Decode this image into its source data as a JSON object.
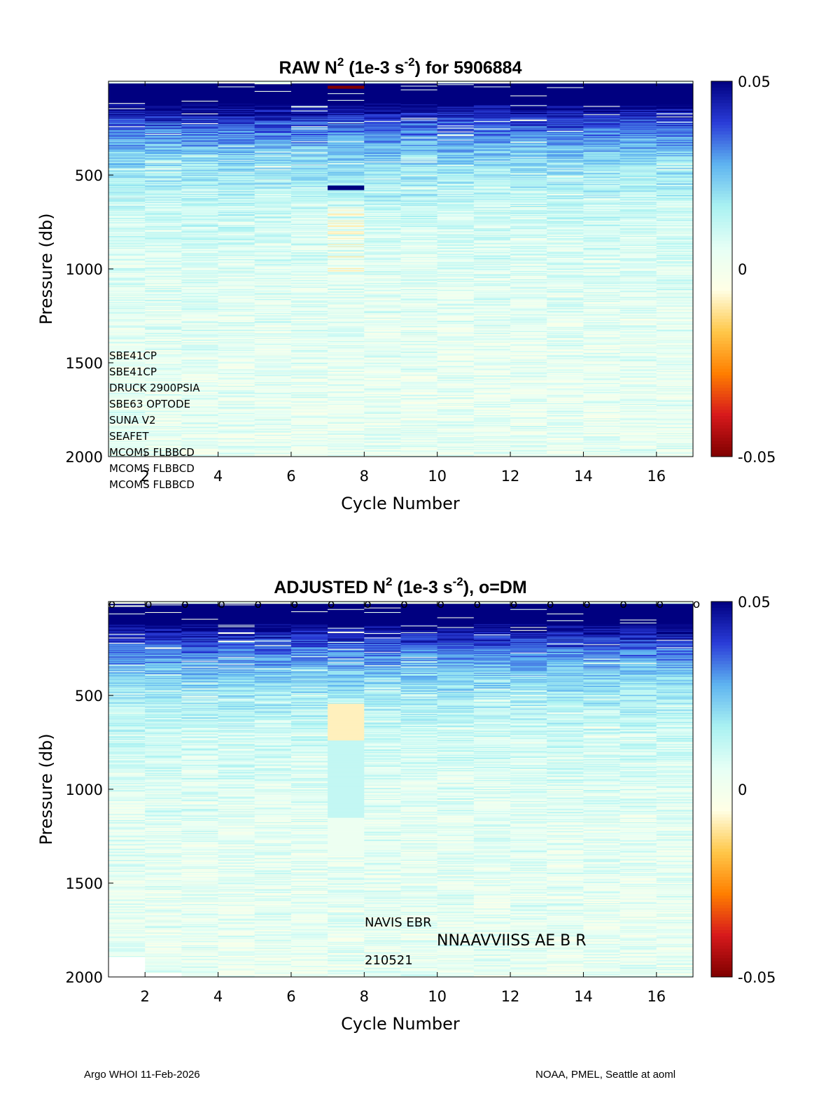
{
  "footer": {
    "left": "Argo WHOI 11-Feb-2026",
    "right": "NOAA, PMEL, Seattle at aoml"
  },
  "colors": {
    "colormap": [
      "#7f0000",
      "#d7191c",
      "#ff7f00",
      "#ffc84a",
      "#ffffe6",
      "#e6fff5",
      "#aaf2f2",
      "#5fb4f0",
      "#2a3cd8",
      "#000080"
    ]
  },
  "chart_data": [
    {
      "type": "heatmap",
      "title_prefix": "RAW N",
      "title_sup1": "2",
      "title_mid": " (1e-3 s",
      "title_sup2": "-2",
      "title_suffix": ") for 5906884",
      "xlabel": "Cycle Number",
      "ylabel": "Pressure (db)",
      "x": [
        1,
        2,
        3,
        4,
        5,
        6,
        7,
        8,
        9,
        10,
        11,
        12,
        13,
        14,
        15,
        16
      ],
      "xlim": [
        1,
        17
      ],
      "ylim": [
        0,
        2000
      ],
      "y_reversed": true,
      "x_ticks": [
        "2",
        "4",
        "6",
        "8",
        "10",
        "12",
        "14",
        "16"
      ],
      "y_ticks": [
        "500",
        "1000",
        "1500",
        "2000"
      ],
      "clim": [
        -0.05,
        0.05
      ],
      "colorbar_ticks": [
        "0.05",
        "0",
        "-0.05"
      ],
      "sensor_labels": [
        "SBE41CP",
        "SBE41CP",
        "DRUCK 2900PSIA",
        "SBE63 OPTODE",
        "SUNA V2",
        "SEAFET",
        "MCOMS FLBBCD",
        "MCOMS FLBBCD",
        "MCOMS FLBBCD"
      ],
      "dm_markers": false,
      "anomaly_profile": 7
    },
    {
      "type": "heatmap",
      "title_prefix": "ADJUSTED N",
      "title_sup1": "2",
      "title_mid": " (1e-3 s",
      "title_sup2": "-2",
      "title_suffix": "), o=DM",
      "xlabel": "Cycle Number",
      "ylabel": "Pressure (db)",
      "x": [
        1,
        2,
        3,
        4,
        5,
        6,
        7,
        8,
        9,
        10,
        11,
        12,
        13,
        14,
        15,
        16
      ],
      "xlim": [
        1,
        17
      ],
      "ylim": [
        0,
        2000
      ],
      "y_reversed": true,
      "x_ticks": [
        "2",
        "4",
        "6",
        "8",
        "10",
        "12",
        "14",
        "16"
      ],
      "y_ticks": [
        "500",
        "1000",
        "1500",
        "2000"
      ],
      "clim": [
        -0.05,
        0.05
      ],
      "colorbar_ticks": [
        "0.05",
        "0",
        "-0.05"
      ],
      "dm_marker": "o",
      "dm_cycles": [
        1,
        2,
        3,
        4,
        5,
        6,
        7,
        8,
        9,
        10,
        11,
        12,
        13,
        14,
        15,
        16,
        17
      ],
      "annotations": {
        "platform": "NAVIS EBR",
        "platform_overprint": "NNAAVVIISS  AE B R",
        "date_code": "210521"
      },
      "anomaly_profile": 7
    }
  ]
}
